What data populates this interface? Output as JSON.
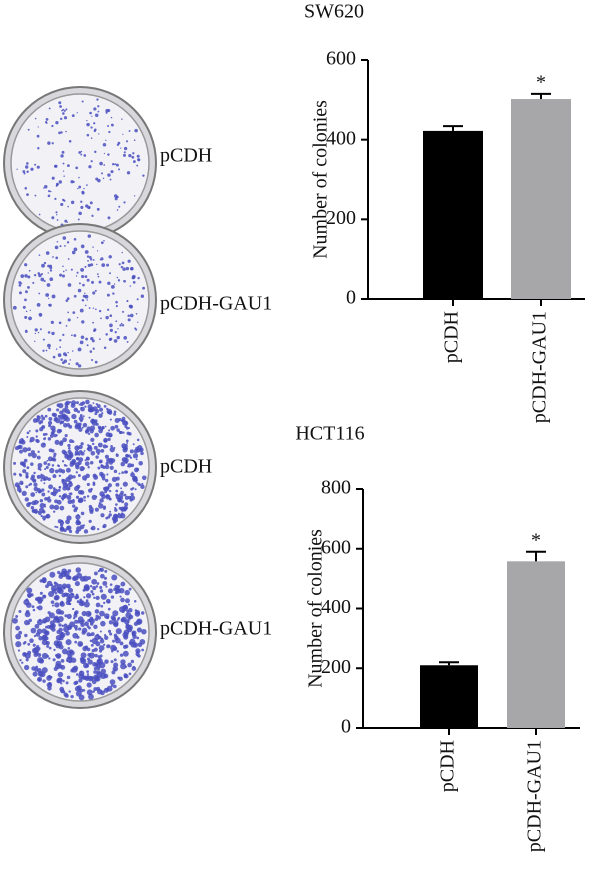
{
  "plates": [
    {
      "label": "pCDH"
    },
    {
      "label": "pCDH-GAU1"
    },
    {
      "label": "pCDH"
    },
    {
      "label": "pCDH-GAU1"
    }
  ],
  "chart_data": [
    {
      "type": "bar",
      "title": "SW620",
      "y_label": "Number of colonies",
      "categories": [
        "pCDH",
        "pCDH-GAU1"
      ],
      "values": [
        422,
        502
      ],
      "errors": [
        12,
        13
      ],
      "annotations": [
        null,
        "*"
      ],
      "colors": [
        "#000000",
        "#a7a7a9"
      ],
      "ylim": [
        0,
        600
      ],
      "yticks": [
        0,
        200,
        400,
        600
      ]
    },
    {
      "type": "bar",
      "title": "HCT116",
      "y_label": "Number of colonies",
      "categories": [
        "pCDH",
        "pCDH-GAU1"
      ],
      "values": [
        210,
        558
      ],
      "errors": [
        10,
        32
      ],
      "annotations": [
        null,
        "*"
      ],
      "colors": [
        "#000000",
        "#a7a7a9"
      ],
      "ylim": [
        0,
        800
      ],
      "yticks": [
        0,
        200,
        400,
        600,
        800
      ]
    }
  ]
}
